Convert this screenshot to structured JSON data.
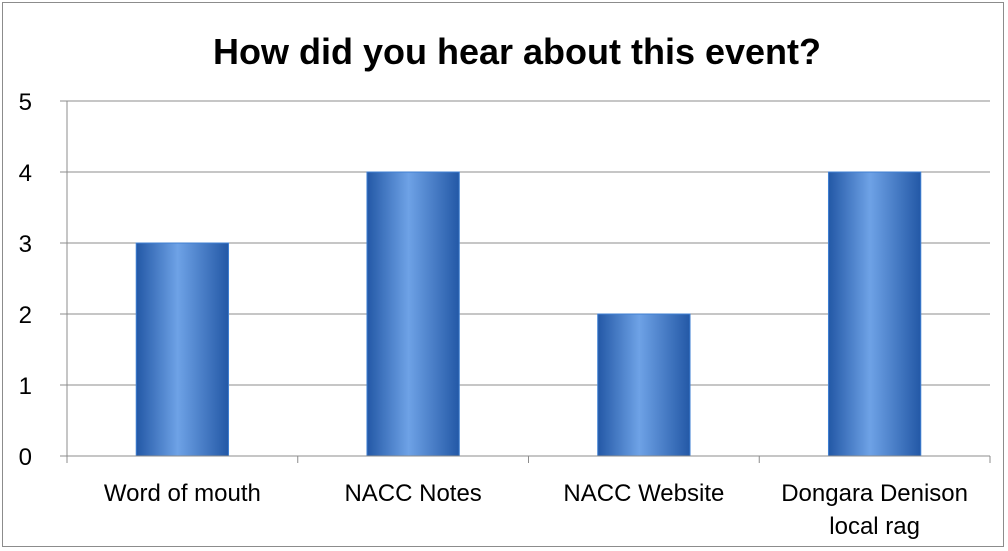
{
  "chart_data": {
    "type": "bar",
    "title": "How did you hear about this event?",
    "xlabel": "",
    "ylabel": "",
    "categories": [
      [
        "Word of mouth"
      ],
      [
        "NACC Notes"
      ],
      [
        "NACC Website"
      ],
      [
        "Dongara Denison",
        "local rag"
      ]
    ],
    "values": [
      3,
      4,
      2,
      4
    ],
    "ylim": [
      0,
      5
    ],
    "yticks": [
      0,
      1,
      2,
      3,
      4,
      5
    ],
    "grid": true,
    "legend": "none",
    "colors": {
      "bar_light": "#6ea2e6",
      "bar_mid": "#3f7fd2",
      "bar_dark": "#2358a6",
      "grid": "#8c8c8c",
      "axis": "#8c8c8c"
    }
  }
}
